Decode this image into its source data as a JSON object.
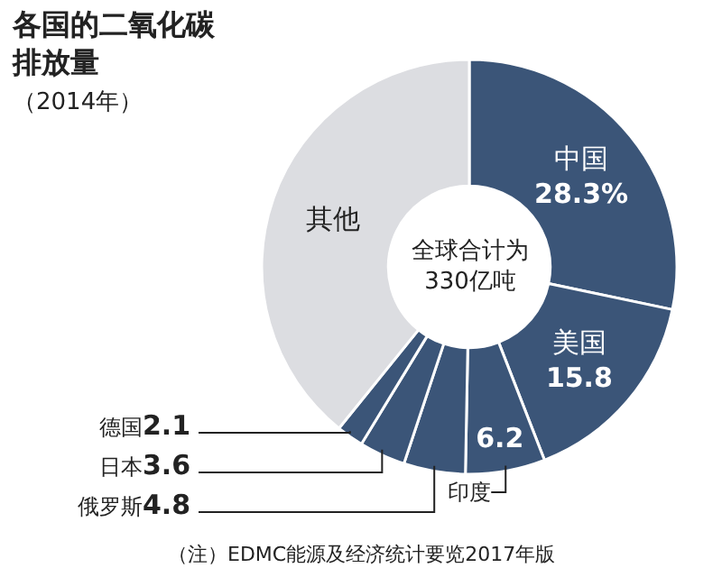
{
  "chart_data": {
    "type": "donut",
    "title": "各国的二氧化碳排放量",
    "subtitle": "（2014年）",
    "categories": [
      "中国",
      "美国",
      "印度",
      "俄罗斯",
      "日本",
      "德国",
      "其他"
    ],
    "values": [
      28.3,
      15.8,
      6.2,
      4.8,
      3.6,
      2.1,
      39.2
    ],
    "value_labels": [
      "28.3%",
      "15.8",
      "6.2",
      "4.8",
      "3.6",
      "2.1",
      null
    ],
    "colors": [
      "#3b5578",
      "#3b5578",
      "#3b5578",
      "#3b5578",
      "#3b5578",
      "#3b5578",
      "#dcdde1"
    ],
    "annotations": [
      "全球合计为330亿吨",
      "（注）EDMC能源及经济统计要览2017年版"
    ],
    "legend": false
  }
}
